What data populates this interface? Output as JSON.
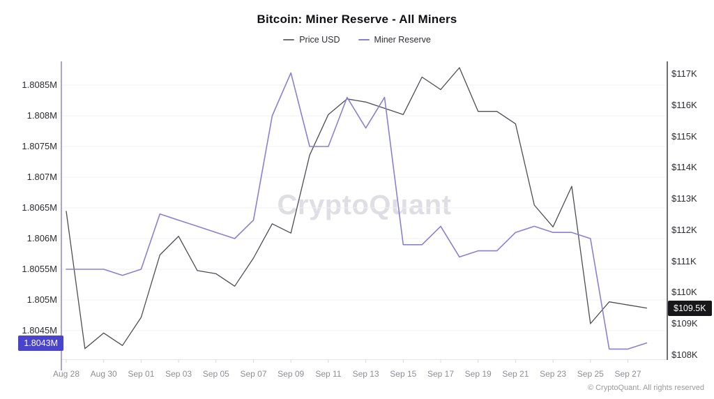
{
  "header": {
    "title": "Bitcoin: Miner Reserve - All Miners"
  },
  "legend": [
    {
      "label": "Price USD",
      "color": "#6e6e74"
    },
    {
      "label": "Miner Reserve",
      "color": "#8780d8"
    }
  ],
  "watermark": "CryptoQuant",
  "footer": "© CryptoQuant. All rights reserved",
  "badges": {
    "reserve_current": {
      "label": "1.8043M",
      "value": 1.8043,
      "bg_color": "#4a43cb"
    },
    "price_current": {
      "label": "$109.5K",
      "value": 109.5,
      "bg_color": "#17171a"
    }
  },
  "chart_data": {
    "type": "line",
    "title": "Bitcoin: Miner Reserve - All Miners",
    "x": [
      "Aug 28",
      "Aug 29",
      "Aug 30",
      "Aug 31",
      "Sep 01",
      "Sep 02",
      "Sep 03",
      "Sep 04",
      "Sep 05",
      "Sep 06",
      "Sep 07",
      "Sep 08",
      "Sep 09",
      "Sep 10",
      "Sep 11",
      "Sep 12",
      "Sep 13",
      "Sep 14",
      "Sep 15",
      "Sep 16",
      "Sep 17",
      "Sep 18",
      "Sep 19",
      "Sep 20",
      "Sep 21",
      "Sep 22",
      "Sep 23",
      "Sep 24",
      "Sep 25",
      "Sep 26",
      "Sep 27",
      "Sep 28"
    ],
    "series": [
      {
        "name": "Price USD",
        "axis": "right",
        "unit": "thousand USD",
        "color": "#4d4d52",
        "stroke_width": 1.3,
        "values": [
          112.6,
          108.2,
          108.7,
          108.3,
          109.2,
          111.2,
          111.8,
          110.7,
          110.6,
          110.2,
          111.1,
          112.2,
          111.9,
          114.4,
          115.7,
          116.2,
          116.1,
          115.9,
          115.7,
          116.9,
          116.5,
          117.2,
          115.8,
          115.8,
          115.4,
          112.8,
          112.1,
          113.4,
          109.0,
          109.7,
          109.6,
          109.5
        ]
      },
      {
        "name": "Miner Reserve",
        "axis": "left",
        "unit": "million BTC",
        "color": "#8780d8",
        "stroke_width": 1.6,
        "values": [
          1.8055,
          1.8055,
          1.8055,
          1.8054,
          1.8055,
          1.8064,
          1.8063,
          1.8062,
          1.8061,
          1.806,
          1.8063,
          1.808,
          1.8087,
          1.8075,
          1.8075,
          1.8083,
          1.8078,
          1.8083,
          1.8059,
          1.8059,
          1.8062,
          1.8057,
          1.8058,
          1.8058,
          1.8061,
          1.8062,
          1.8061,
          1.8061,
          1.806,
          1.8042,
          1.8042,
          1.8043
        ]
      }
    ],
    "left_axis": {
      "tick_labels": [
        "1.8085M",
        "1.808M",
        "1.8075M",
        "1.807M",
        "1.8065M",
        "1.806M",
        "1.8055M",
        "1.805M",
        "1.8045M"
      ],
      "tick_values": [
        1.8085,
        1.808,
        1.8075,
        1.807,
        1.8065,
        1.806,
        1.8055,
        1.805,
        1.8045
      ],
      "range": [
        1.804,
        1.8089
      ],
      "axis_line_color": "#8b84dc"
    },
    "right_axis": {
      "tick_labels": [
        "$117K",
        "$116K",
        "$115K",
        "$114K",
        "$113K",
        "$112K",
        "$111K",
        "$110K",
        "$109K",
        "$108K"
      ],
      "tick_values": [
        117,
        116,
        115,
        114,
        113,
        112,
        111,
        110,
        109,
        108
      ],
      "range": [
        107.9,
        117.4
      ],
      "axis_line_color": "#3f3f45"
    },
    "x_tick_labels": [
      "Aug 28",
      "Aug 30",
      "Sep 01",
      "Sep 03",
      "Sep 05",
      "Sep 07",
      "Sep 09",
      "Sep 11",
      "Sep 13",
      "Sep 15",
      "Sep 17",
      "Sep 19",
      "Sep 21",
      "Sep 23",
      "Sep 25",
      "Sep 27"
    ],
    "grid": "horizontal",
    "grid_color": "#f1f1f5",
    "legend_position": "top"
  }
}
